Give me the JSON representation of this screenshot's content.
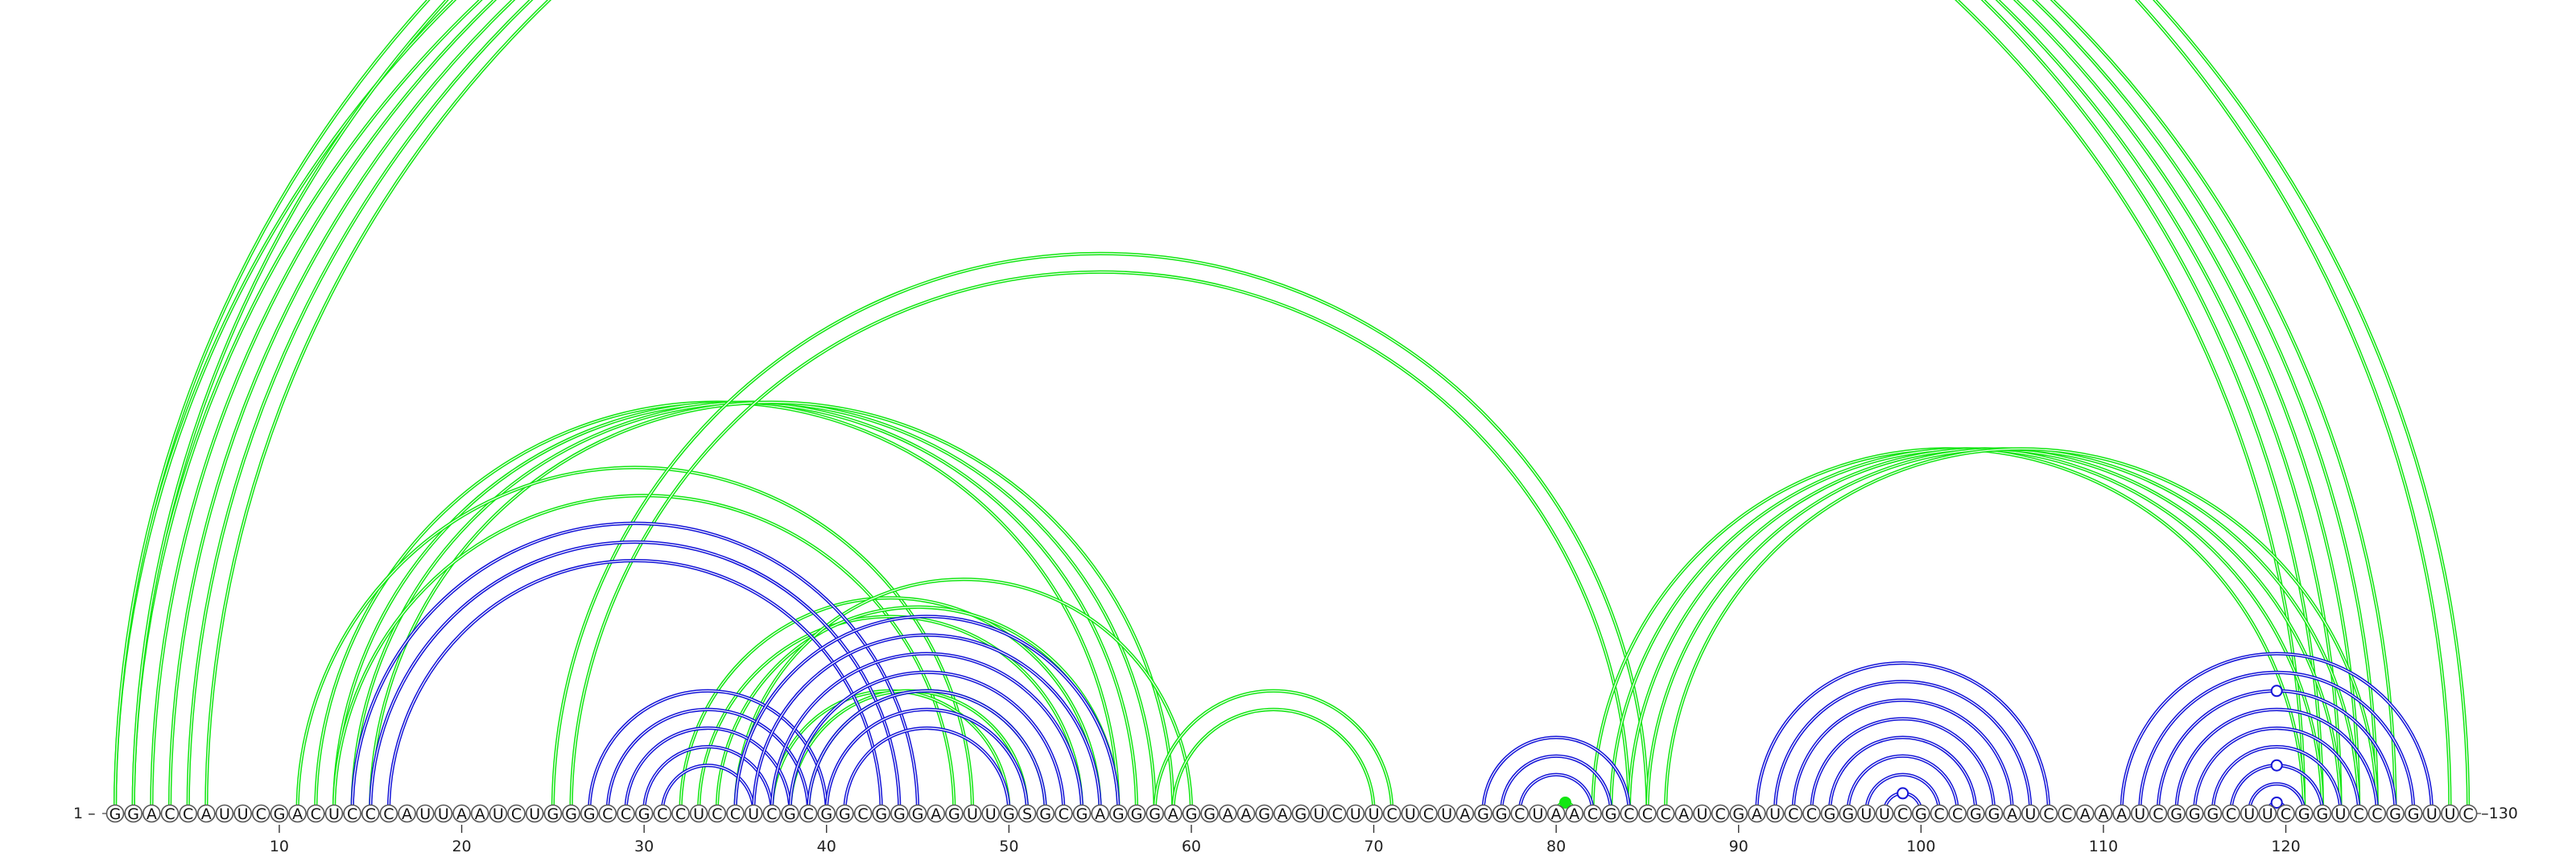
{
  "sequence": "GGACCAUUCGACUCCCAUUAAUCUGGGCCGCCUCCUCGCGGCGGGAGUUGSGCGAGGGAGGAAGAGUCUUCUCUAGGCUAACGCCCAUCGAUCCGGUUCGCCGGAUCCAAAUCGGGCUUCGGUCCGGUUC",
  "ends": {
    "start": "1",
    "end": "130",
    "start_label": "1 –",
    "end_label": "–130"
  },
  "ticks": [
    10,
    20,
    30,
    40,
    50,
    60,
    70,
    80,
    90,
    100,
    110,
    120
  ],
  "colors": {
    "blue": "#1414d8",
    "green": "#12e612",
    "marker_green": "#12e612",
    "marker_blue": "#1414d8"
  },
  "arcs": {
    "blue": [
      [
        14,
        45
      ],
      [
        15,
        44
      ],
      [
        16,
        43
      ],
      [
        27,
        40
      ],
      [
        28,
        39
      ],
      [
        29,
        38
      ],
      [
        30,
        37
      ],
      [
        31,
        36
      ],
      [
        35,
        56
      ],
      [
        36,
        55
      ],
      [
        37,
        54
      ],
      [
        38,
        53
      ],
      [
        39,
        52
      ],
      [
        40,
        51
      ],
      [
        41,
        50
      ],
      [
        76,
        84
      ],
      [
        77,
        83
      ],
      [
        78,
        82
      ],
      [
        91,
        107
      ],
      [
        92,
        106
      ],
      [
        93,
        105
      ],
      [
        94,
        104
      ],
      [
        95,
        103
      ],
      [
        96,
        102
      ],
      [
        97,
        101
      ],
      [
        98,
        100
      ],
      [
        111,
        128
      ],
      [
        112,
        127
      ],
      [
        113,
        126
      ],
      [
        114,
        125
      ],
      [
        115,
        124
      ],
      [
        116,
        123
      ],
      [
        117,
        122
      ],
      [
        118,
        121
      ],
      [
        119,
        120
      ]
    ],
    "green": [
      [
        1,
        122
      ],
      [
        2,
        121
      ],
      [
        3,
        123
      ],
      [
        4,
        124
      ],
      [
        5,
        125
      ],
      [
        6,
        126
      ],
      [
        2,
        130
      ],
      [
        1,
        129
      ],
      [
        12,
        56
      ],
      [
        13,
        57
      ],
      [
        14,
        58
      ],
      [
        15,
        59
      ],
      [
        11,
        48
      ],
      [
        13,
        47
      ],
      [
        25,
        85
      ],
      [
        26,
        84
      ],
      [
        32,
        55
      ],
      [
        33,
        54
      ],
      [
        34,
        56
      ],
      [
        35,
        60
      ],
      [
        37,
        50
      ],
      [
        38,
        51
      ],
      [
        39,
        52
      ],
      [
        58,
        71
      ],
      [
        59,
        70
      ],
      [
        82,
        121
      ],
      [
        83,
        122
      ],
      [
        84,
        123
      ],
      [
        85,
        124
      ],
      [
        86,
        125
      ],
      [
        80,
        81
      ]
    ]
  },
  "markers": [
    {
      "kind": "open",
      "color": "green",
      "i": 1,
      "j": 129
    },
    {
      "kind": "filled",
      "color": "green",
      "i": 80,
      "j": 81
    },
    {
      "kind": "open",
      "color": "blue",
      "i": 98,
      "j": 100
    },
    {
      "kind": "open",
      "color": "blue",
      "i": 119,
      "j": 120
    },
    {
      "kind": "open",
      "color": "blue",
      "i": 117,
      "j": 122
    },
    {
      "kind": "open",
      "color": "blue",
      "i": 113,
      "j": 126
    }
  ]
}
